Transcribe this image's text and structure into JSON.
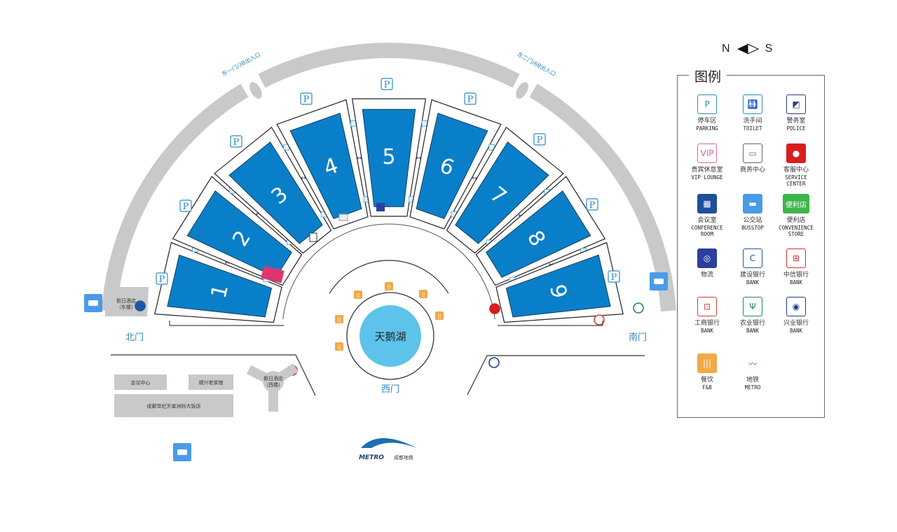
{
  "compass": {
    "north": "N",
    "south": "S"
  },
  "legend": {
    "title": "图例",
    "items": [
      {
        "zh": "停车区",
        "en": "PARKING",
        "icon": "parking-icon"
      },
      {
        "zh": "洗手间",
        "en": "TOILET",
        "icon": "toilet-icon"
      },
      {
        "zh": "警务室",
        "en": "POLICE",
        "icon": "police-icon"
      },
      {
        "zh": "贵宾休息室",
        "en": "VIP LOUNGE",
        "icon": "vip-icon"
      },
      {
        "zh": "商务中心",
        "en": "",
        "icon": "printer-icon"
      },
      {
        "zh": "客服中心",
        "en": "SERVICE\nCENTER",
        "icon": "service-center-icon"
      },
      {
        "zh": "会议室",
        "en": "CONFERENCE\nROOM",
        "icon": "conference-room-icon"
      },
      {
        "zh": "公交站",
        "en": "BUSSTOP",
        "icon": "bus-icon"
      },
      {
        "zh": "便利店",
        "en": "CONVENIENCE\nSTORE",
        "icon": "convenience-store-icon",
        "badge": "便利店"
      },
      {
        "zh": "物流",
        "en": "",
        "icon": "logistics-icon"
      },
      {
        "zh": "建设银行",
        "en": "BANK",
        "icon": "ccb-bank-icon"
      },
      {
        "zh": "中信银行",
        "en": "BANK",
        "icon": "citic-bank-icon"
      },
      {
        "zh": "工商银行",
        "en": "BANK",
        "icon": "icbc-bank-icon"
      },
      {
        "zh": "农业银行",
        "en": "BANK",
        "icon": "abc-bank-icon"
      },
      {
        "zh": "兴业银行",
        "en": "BANK",
        "icon": "cib-bank-icon"
      },
      {
        "zh": "餐饮",
        "en": "F&B",
        "icon": "food-icon"
      },
      {
        "zh": "地铁",
        "en": "METRO",
        "icon": "metro-icon"
      }
    ]
  },
  "map": {
    "halls": [
      "1",
      "2",
      "3",
      "4",
      "5",
      "6",
      "7",
      "8",
      "9"
    ],
    "lake": "天鹅湖",
    "gates": {
      "north": "北门",
      "south": "南门",
      "west": "西门",
      "east1": "东一门/3B出入口",
      "east2": "东二门/6B出入口"
    },
    "buildings": {
      "holiday_east": "假日酒店\n（东楼）",
      "holiday_west": "假日酒店\n（西楼）",
      "conference_center": "会议中心",
      "teahouse": "顺兴老茶馆",
      "intercontinental": "成都世纪天堂洲际大饭店"
    },
    "metro_logo": {
      "en": "METRO",
      "zh": "成都地铁"
    },
    "colors": {
      "hall": "#0a7fc9",
      "road": "#c8c9ca",
      "lake": "#5dc3ea",
      "gate_text": "#2d86bd",
      "food": "#f0a945",
      "vip": "#e0356e",
      "parking": "#2a8cbf",
      "bus": "#4a9be8"
    }
  }
}
